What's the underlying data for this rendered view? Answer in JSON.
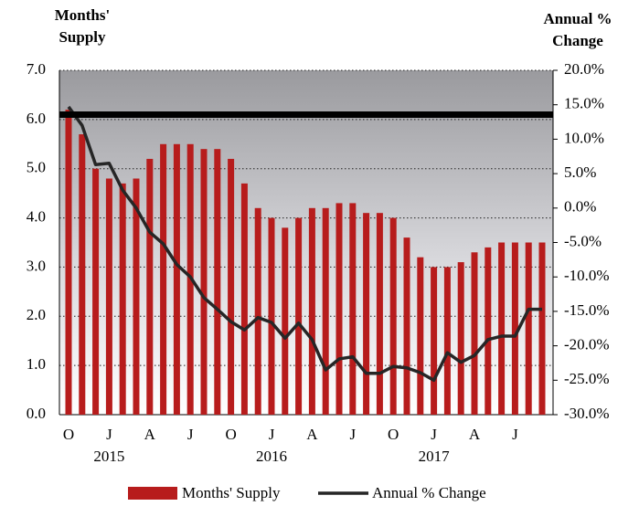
{
  "chart_data": {
    "type": "bar_line",
    "y_label": [
      "Months'",
      "Supply"
    ],
    "y2_label": [
      "Annual %",
      "Change"
    ],
    "categories": [
      "O",
      null,
      null,
      "J",
      null,
      null,
      "A",
      null,
      null,
      "J",
      null,
      null,
      "O",
      null,
      null,
      "J",
      null,
      null,
      "A",
      null,
      null,
      "J",
      null,
      null,
      "O",
      null,
      null,
      "J",
      null,
      null,
      "A",
      null,
      null,
      "J",
      null,
      null
    ],
    "group_labels": [
      null,
      null,
      null,
      "2015",
      null,
      null,
      null,
      null,
      null,
      null,
      null,
      null,
      null,
      null,
      null,
      "2016",
      null,
      null,
      null,
      null,
      null,
      null,
      null,
      null,
      null,
      null,
      null,
      "2017",
      null,
      null,
      null,
      null,
      null,
      null,
      null,
      null
    ],
    "series": [
      {
        "name": "Months' Supply",
        "type": "bar",
        "color": "#b71c1c",
        "values": [
          6.2,
          5.7,
          5.0,
          4.8,
          4.7,
          4.8,
          5.2,
          5.5,
          5.5,
          5.5,
          5.4,
          5.4,
          5.2,
          4.7,
          4.2,
          4.0,
          3.8,
          4.0,
          4.2,
          4.2,
          4.3,
          4.3,
          4.1,
          4.1,
          4.0,
          3.6,
          3.2,
          3.0,
          3.0,
          3.1,
          3.3,
          3.4,
          3.5,
          3.5,
          3.5,
          3.5
        ]
      },
      {
        "name": "Annual % Change",
        "type": "line",
        "axis": "y2",
        "color": "#262626",
        "values": [
          14.7,
          12.0,
          6.3,
          6.5,
          2.6,
          0.0,
          -3.5,
          -5.2,
          -8.2,
          -10.0,
          -13.0,
          -14.7,
          -16.5,
          -17.7,
          -15.9,
          -16.6,
          -18.9,
          -16.7,
          -19.1,
          -23.5,
          -21.9,
          -21.6,
          -24.0,
          -24.0,
          -23.0,
          -23.2,
          -23.9,
          -25.0,
          -21.0,
          -22.4,
          -21.4,
          -19.1,
          -18.6,
          -18.6,
          -14.7,
          -14.7
        ]
      }
    ],
    "reference_line": 6.1,
    "ylim": [
      0,
      7
    ],
    "yticks": [
      {
        "value": 0,
        "label": "0.0"
      },
      {
        "value": 1,
        "label": "1.0"
      },
      {
        "value": 2,
        "label": "2.0"
      },
      {
        "value": 3,
        "label": "3.0"
      },
      {
        "value": 4,
        "label": "4.0"
      },
      {
        "value": 5,
        "label": "5.0"
      },
      {
        "value": 6,
        "label": "6.0"
      },
      {
        "value": 7,
        "label": "7.0"
      }
    ],
    "y2lim": [
      -30,
      20
    ],
    "y2ticks": [
      {
        "value": -30,
        "label": "-30.0%"
      },
      {
        "value": -25,
        "label": "-25.0%"
      },
      {
        "value": -20,
        "label": "-20.0%"
      },
      {
        "value": -15,
        "label": "-15.0%"
      },
      {
        "value": -10,
        "label": "-10.0%"
      },
      {
        "value": -5,
        "label": "-5.0%"
      },
      {
        "value": 0,
        "label": "0.0%"
      },
      {
        "value": 5,
        "label": "5.0%"
      },
      {
        "value": 10,
        "label": "10.0%"
      },
      {
        "value": 15,
        "label": "15.0%"
      },
      {
        "value": 20,
        "label": "20.0%"
      }
    ],
    "grid": true
  }
}
